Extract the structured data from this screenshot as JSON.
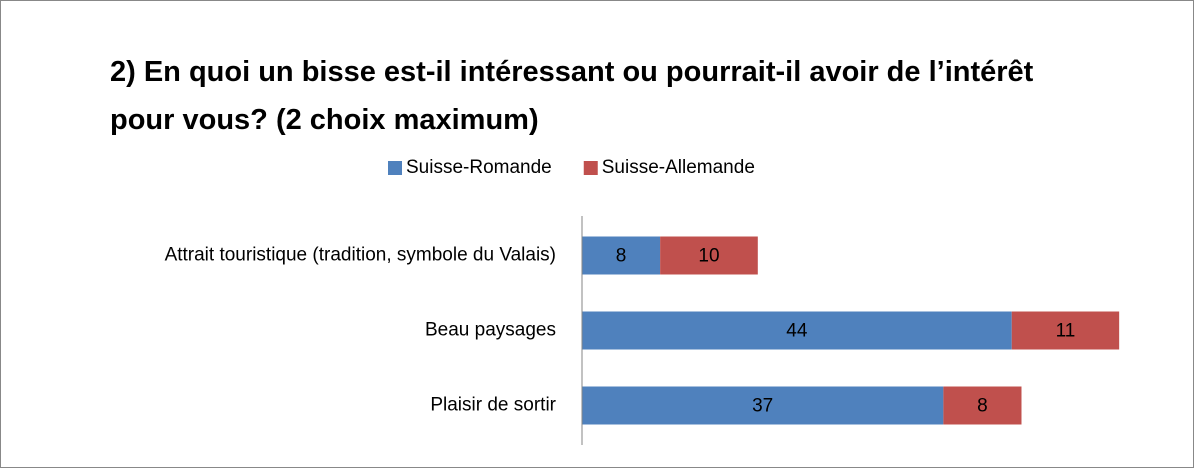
{
  "chart_data": {
    "type": "stacked-barh",
    "title": "2) En quoi un bisse est-il intéressant ou pourrait-il avoir de l’intérêt pour vous? (2 choix maximum)",
    "categories": [
      "Attrait touristique (tradition, symbole du Valais)",
      "Beau paysages",
      "Plaisir de sortir"
    ],
    "series": [
      {
        "name": "Suisse-Romande",
        "color": "#4f81bd",
        "values": [
          8,
          44,
          37
        ]
      },
      {
        "name": "Suisse-Allemande",
        "color": "#c0504d",
        "values": [
          10,
          11,
          8
        ]
      }
    ],
    "xlim": [
      0,
      60
    ],
    "legend": "top"
  }
}
